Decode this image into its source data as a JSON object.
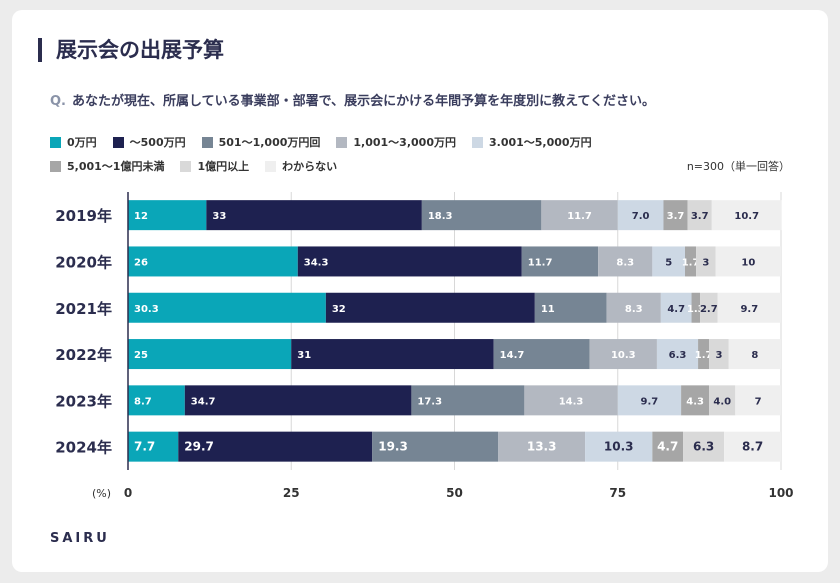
{
  "title": "展示会の出展予算",
  "question_mark": "Q.",
  "question": "あなたが現在、所属している事業部・部署で、展示会にかける年間予算を年度別に教えてください。",
  "sample_note": "n=300（単一回答）",
  "brand": "SAIRU",
  "chart_data": {
    "type": "bar",
    "orientation": "horizontal-stacked",
    "categories": [
      "2019年",
      "2020年",
      "2021年",
      "2022年",
      "2023年",
      "2024年"
    ],
    "series": [
      {
        "name": "0万円",
        "color": "#0aa6b8",
        "values": [
          12,
          26,
          30.3,
          25,
          8.7,
          7.7
        ],
        "labels": [
          "12",
          "26",
          "30.3",
          "25",
          "8.7",
          "7.7"
        ]
      },
      {
        "name": "～500万円",
        "color": "#1e2150",
        "values": [
          33,
          34.3,
          32,
          31,
          34.7,
          29.7
        ],
        "labels": [
          "33",
          "34.3",
          "32",
          "31",
          "34.7",
          "29.7"
        ]
      },
      {
        "name": "501～1,000万円回",
        "color": "#768594",
        "values": [
          18.3,
          11.7,
          11,
          14.7,
          17.3,
          19.3
        ],
        "labels": [
          "18.3",
          "11.7",
          "11",
          "14.7",
          "17.3",
          "19.3"
        ]
      },
      {
        "name": "1,001～3,000万円",
        "color": "#b3b8c1",
        "values": [
          11.7,
          8.3,
          8.3,
          10.3,
          14.3,
          13.3
        ],
        "labels": [
          "11.7",
          "8.3",
          "8.3",
          "10.3",
          "14.3",
          "13.3"
        ]
      },
      {
        "name": "3.001～5,000万円",
        "color": "#cdd8e4",
        "values": [
          7.0,
          5,
          4.7,
          6.3,
          9.7,
          10.3
        ],
        "labels": [
          "7.0",
          "5",
          "4.7",
          "6.3",
          "9.7",
          "10.3"
        ]
      },
      {
        "name": "5,001～1億円未満",
        "color": "#a6a6a6",
        "values": [
          3.7,
          1.7,
          1.3,
          1.7,
          4.3,
          4.7
        ],
        "labels": [
          "3.7",
          "1.7",
          "1.3",
          "1.7",
          "4.3",
          "4.7"
        ]
      },
      {
        "name": "1億円以上",
        "color": "#d9d9d9",
        "values": [
          3.7,
          3,
          2.7,
          3,
          4.0,
          6.3
        ],
        "labels": [
          "3.7",
          "3",
          "2.7",
          "3",
          "4.0",
          "6.3"
        ]
      },
      {
        "name": "わからない",
        "color": "#efefef",
        "values": [
          10.7,
          10,
          9.7,
          8,
          7,
          8.7
        ],
        "labels": [
          "10.7",
          "10",
          "9.7",
          "8",
          "7",
          "8.7"
        ]
      }
    ],
    "label_colors": [
      "#ffffff",
      "#ffffff",
      "#ffffff",
      "#ffffff",
      "#2b2d4e",
      "#ffffff",
      "#2b2d4e",
      "#2b2d4e"
    ],
    "xlim": [
      0,
      100
    ],
    "xticks": [
      "0",
      "25",
      "50",
      "75",
      "100"
    ],
    "xtick_values": [
      0,
      25,
      50,
      75,
      100
    ],
    "xlabel": "(%)",
    "grid": true,
    "legend_position": "top-left"
  }
}
